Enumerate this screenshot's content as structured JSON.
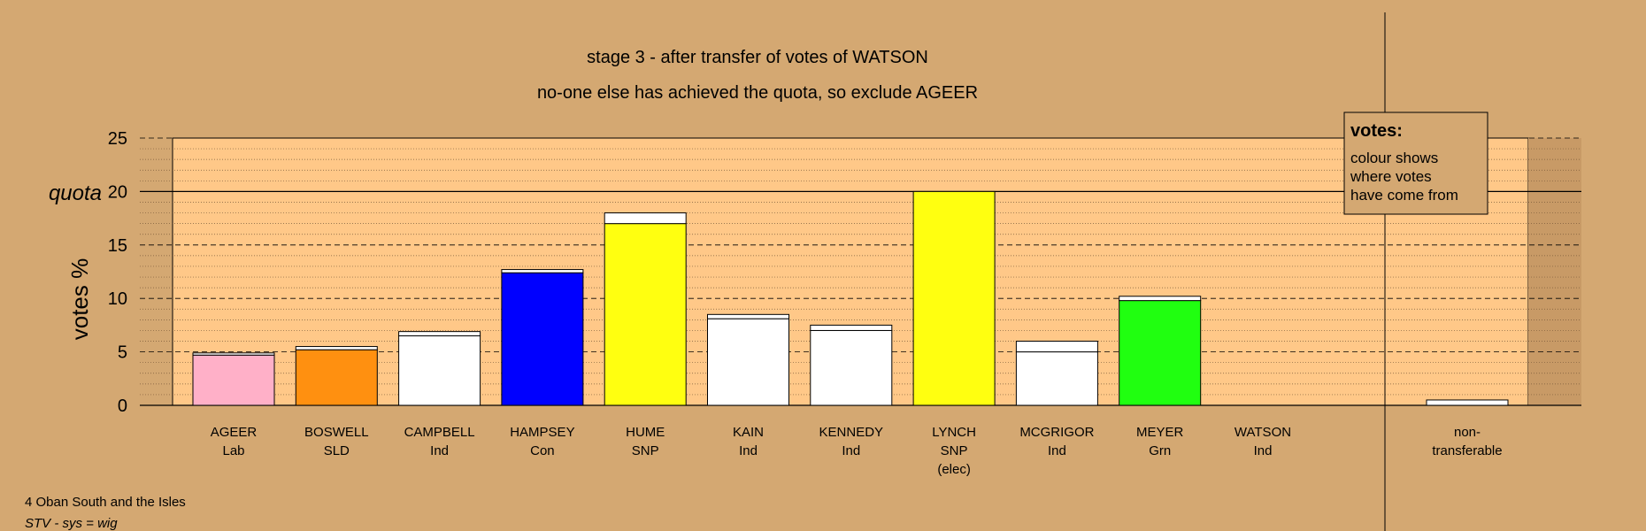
{
  "chart_data": {
    "type": "bar",
    "title": "stage 3 - after transfer of votes of WATSON",
    "subtitle": "no-one else has achieved the quota, so exclude AGEER",
    "ylabel": "votes %",
    "ylim": [
      0,
      25
    ],
    "yticks": [
      0,
      5,
      10,
      15,
      20,
      25
    ],
    "quota_label": "quota",
    "quota_value": 20,
    "grid": true,
    "candidates": [
      {
        "name": "AGEER",
        "party": "Lab",
        "note": "",
        "base_color": "#ffb0c8",
        "base": 4.7,
        "transfer": 0.2
      },
      {
        "name": "BOSWELL",
        "party": "SLD",
        "note": "",
        "base_color": "#ff9010",
        "base": 5.2,
        "transfer": 0.3
      },
      {
        "name": "CAMPBELL",
        "party": "Ind",
        "note": "",
        "base_color": "#ffffff",
        "base": 6.5,
        "transfer": 0.4
      },
      {
        "name": "HAMPSEY",
        "party": "Con",
        "note": "",
        "base_color": "#0000ff",
        "base": 12.4,
        "transfer": 0.3
      },
      {
        "name": "HUME",
        "party": "SNP",
        "note": "",
        "base_color": "#ffff10",
        "base": 17.0,
        "transfer": 1.0
      },
      {
        "name": "KAIN",
        "party": "Ind",
        "note": "",
        "base_color": "#ffffff",
        "base": 8.1,
        "transfer": 0.4
      },
      {
        "name": "KENNEDY",
        "party": "Ind",
        "note": "",
        "base_color": "#ffffff",
        "base": 7.0,
        "transfer": 0.5
      },
      {
        "name": "LYNCH",
        "party": "SNP",
        "note": "(elec)",
        "base_color": "#ffff10",
        "base": 20.0,
        "transfer": 0.0
      },
      {
        "name": "MCGRIGOR",
        "party": "Ind",
        "note": "",
        "base_color": "#ffffff",
        "base": 5.0,
        "transfer": 1.0
      },
      {
        "name": "MEYER",
        "party": "Grn",
        "note": "",
        "base_color": "#20ff10",
        "base": 9.8,
        "transfer": 0.4
      },
      {
        "name": "WATSON",
        "party": "Ind",
        "note": "",
        "base_color": "#ffffff",
        "base": 0.0,
        "transfer": 0.0
      }
    ],
    "non_transferable": {
      "label_line1": "non-",
      "label_line2": "transferable",
      "value": 0.5
    },
    "legend": {
      "heading": "votes:",
      "lines": [
        "colour shows",
        "where votes",
        "have come from"
      ]
    },
    "colors": {
      "background": "#d4a872",
      "plot_area": "#ffc888",
      "transfer": "#ffffff"
    }
  },
  "footer": {
    "ward": "4 Oban South and the Isles",
    "system": "STV - sys = wig"
  }
}
